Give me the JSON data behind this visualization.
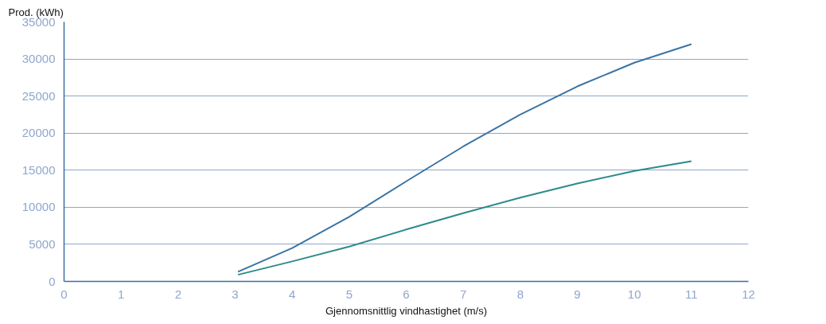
{
  "chart_data": {
    "type": "line",
    "ylabel": "Prod. (kWh)",
    "xlabel": "Gjennomsnittlig vindhastighet (m/s)",
    "xlim": [
      0,
      12
    ],
    "xticks": [
      0,
      1,
      2,
      3,
      4,
      5,
      6,
      7,
      8,
      9,
      10,
      11,
      12
    ],
    "ylim": [
      0,
      35000
    ],
    "yticks": [
      0,
      5000,
      10000,
      15000,
      20000,
      25000,
      30000,
      35000
    ],
    "grid": "y",
    "marker": "none",
    "line_style": "solid",
    "series": [
      {
        "color": "#3a74a4",
        "x": [
          3.05,
          4,
          5,
          6,
          7,
          8,
          9,
          10,
          11
        ],
        "values": [
          1300,
          4500,
          8700,
          13500,
          18200,
          22500,
          26300,
          29500,
          32000
        ]
      },
      {
        "color": "#2e8a8a",
        "x": [
          3.05,
          4,
          5,
          6,
          7,
          8,
          9,
          10,
          11
        ],
        "values": [
          900,
          2700,
          4700,
          7000,
          9200,
          11300,
          13200,
          14900,
          16200
        ]
      }
    ]
  }
}
